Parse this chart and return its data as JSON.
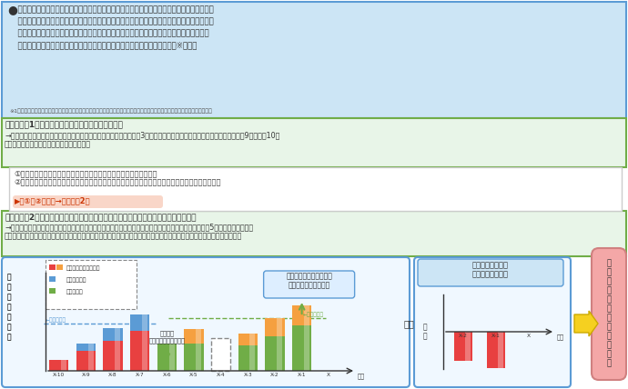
{
  "bg_color": "#ffffff",
  "top_box_bg": "#cce5f5",
  "top_box_border": "#5b9bd5",
  "step1_box_bg": "#e8f5e8",
  "step1_box_border": "#70ad47",
  "step2_box_bg": "#e8f5e8",
  "step2_box_border": "#70ad47",
  "white_box_border": "#cccccc",
  "chart_bg": "#f0f8ff",
  "chart_border": "#5b9bd5",
  "colors": {
    "red": "#e84040",
    "orange": "#f5a040",
    "blue": "#5b9bd5",
    "green": "#70ad47",
    "pink_box": "#f4a7a7",
    "pink_box_border": "#d08080",
    "yellow_arrow": "#f5d020",
    "yellow_arrow_border": "#ccaa00",
    "dashed_box": "#888888",
    "text": "#333333",
    "note": "#555555"
  },
  "chart_xlabel_cats": [
    "X-10",
    "X-9",
    "X-8",
    "X-7",
    "X-6",
    "X-5",
    "X-4",
    "X-3",
    "X-2",
    "X-1",
    "X"
  ]
}
